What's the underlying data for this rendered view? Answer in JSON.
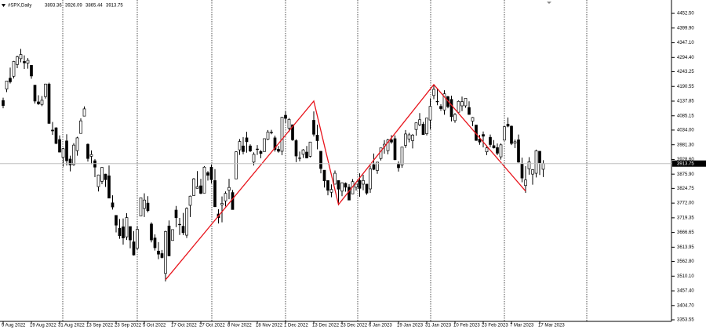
{
  "chart_data": {
    "type": "candlestick",
    "title": "#SPX,Daily",
    "up_color": "#ffffff",
    "down_color": "#000000",
    "line_color": "#000000",
    "ylim": [
      3347.9,
      4486.4
    ],
    "yticks": [
      {
        "value": 4452.5,
        "label": "4452.50"
      },
      {
        "value": 4399.9,
        "label": "4399.90"
      },
      {
        "value": 4347.1,
        "label": "4347.10"
      },
      {
        "value": 4294.4,
        "label": "4294.40"
      },
      {
        "value": 4243.25,
        "label": "4243.25"
      },
      {
        "value": 4190.55,
        "label": "4190.55"
      },
      {
        "value": 4137.85,
        "label": "4137.85"
      },
      {
        "value": 4085.15,
        "label": "4085.15"
      },
      {
        "value": 4034,
        "label": "4034.00"
      },
      {
        "value": 3981.3,
        "label": "3981.30"
      },
      {
        "value": 3928.6,
        "label": "3928.60"
      },
      {
        "value": 3875.9,
        "label": "3875.90"
      },
      {
        "value": 3824.75,
        "label": "3824.75"
      },
      {
        "value": 3772,
        "label": "3772.00"
      },
      {
        "value": 3719.35,
        "label": "3719.35"
      },
      {
        "value": 3666.65,
        "label": "3666.65"
      },
      {
        "value": 3613.95,
        "label": "3613.95"
      },
      {
        "value": 3562.8,
        "label": "3562.80"
      },
      {
        "value": 3510.1,
        "label": "3510.10"
      },
      {
        "value": 3457.4,
        "label": "3457.40"
      },
      {
        "value": 3404.7,
        "label": "3404.70"
      },
      {
        "value": 3353.55,
        "label": "3353.55"
      }
    ],
    "categories": [
      "9 Aug 2022",
      null,
      null,
      null,
      null,
      null,
      null,
      null,
      "19 Aug 2022",
      null,
      null,
      null,
      null,
      null,
      null,
      null,
      "31 Aug 2022",
      null,
      null,
      null,
      null,
      null,
      null,
      null,
      "13 Sep 2022",
      null,
      null,
      null,
      null,
      null,
      null,
      null,
      "23 Sep 2022",
      null,
      null,
      null,
      null,
      null,
      null,
      null,
      "5 Oct 2022",
      null,
      null,
      null,
      null,
      null,
      null,
      null,
      "17 Oct 2022",
      null,
      null,
      null,
      null,
      null,
      null,
      null,
      "27 Oct 2022",
      null,
      null,
      null,
      null,
      null,
      null,
      null,
      "8 Nov 2022",
      null,
      null,
      null,
      null,
      null,
      null,
      null,
      "18 Nov 2022",
      null,
      null,
      null,
      null,
      null,
      null,
      null,
      "1 Dec 2022",
      null,
      null,
      null,
      null,
      null,
      null,
      null,
      "13 Dec 2022",
      null,
      null,
      null,
      null,
      null,
      null,
      null,
      "23 Dec 2022",
      null,
      null,
      null,
      null,
      null,
      null,
      null,
      "6 Jan 2023",
      null,
      null,
      null,
      null,
      null,
      null,
      null,
      "19 Jan 2023",
      null,
      null,
      null,
      null,
      null,
      null,
      null,
      "31 Jan 2023",
      null,
      null,
      null,
      null,
      null,
      null,
      null,
      "10 Feb 2023",
      null,
      null,
      null,
      null,
      null,
      null,
      null,
      "23 Feb 2023",
      null,
      null,
      null,
      null,
      null,
      null,
      null,
      "7 Mar 2023",
      null,
      null,
      null,
      null,
      null,
      null,
      null,
      "17 Mar 2023",
      null
    ],
    "open": [
      4140,
      4181,
      4220,
      4227,
      4269,
      4290,
      4280,
      4274,
      4266,
      4195,
      4135,
      4126,
      4154,
      4199,
      4034,
      4042,
      4000,
      3936,
      3995,
      3930,
      3910,
      3960,
      4022,
      4084,
      3983,
      3940,
      3924,
      3831,
      3850,
      3876,
      3870,
      3773,
      3728,
      3682,
      3687,
      3651,
      3688,
      3633,
      3610,
      3726,
      3753,
      3772,
      3697,
      3647,
      3600,
      3591,
      3520,
      3690,
      3638,
      3747,
      3696,
      3689,
      3657,
      3764,
      3799,
      3825,
      3834,
      3808,
      3881,
      3901,
      3853,
      3733,
      3766,
      3780,
      3818,
      3810,
      3859,
      3963,
      3977,
      4006,
      3977,
      3919,
      3966,
      3957,
      3957,
      4001,
      4024,
      4006,
      3965,
      3958,
      4087,
      4041,
      4053,
      3996,
      3934,
      3947,
      3955,
      3940,
      4069,
      4016,
      3958,
      3890,
      3853,
      3811,
      3840,
      3853,
      3815,
      3843,
      3829,
      3805,
      3829,
      3853,
      3840,
      3840,
      3823,
      3910,
      3889,
      3932,
      3977,
      3960,
      3999,
      4003,
      3911,
      3909,
      3979,
      4002,
      3996,
      4036,
      4053,
      4055,
      4021,
      4070,
      4158,
      4137,
      4119,
      4106,
      4154,
      4144,
      4068,
      4098,
      4121,
      4121,
      4115,
      4066,
      4052,
      4002,
      4018,
      3956,
      4008,
      3978,
      3971,
      3938,
      3998,
      4055,
      4048,
      3987,
      3999,
      3912,
      3835,
      3895,
      3876,
      3879,
      3958,
      3893.36
    ],
    "high": [
      4150,
      4211,
      4258,
      4282,
      4301,
      4325,
      4302,
      4292,
      4266,
      4195,
      4159,
      4156,
      4200,
      4204,
      4063,
      4044,
      4015,
      3970,
      4019,
      3942,
      3987,
      4010,
      4076,
      4119,
      3986,
      3961,
      3930,
      3874,
      3901,
      3877,
      3907,
      3800,
      3728,
      3715,
      3717,
      3736,
      3688,
      3672,
      3690,
      3791,
      3807,
      3797,
      3703,
      3660,
      3632,
      3604,
      3673,
      3710,
      3678,
      3762,
      3719,
      3737,
      3757,
      3799,
      3862,
      3887,
      3859,
      3905,
      3887,
      3911,
      3894,
      3750,
      3796,
      3814,
      3859,
      3819,
      3958,
      4002,
      4009,
      4028,
      3983,
      3954,
      3980,
      3962,
      4003,
      4034,
      4035,
      4014,
      3977,
      4080,
      4101,
      4077,
      4053,
      4001,
      3957,
      3966,
      3977,
      3991,
      4101,
      4053,
      3958,
      3890,
      3854,
      3839,
      3889,
      3853,
      3846,
      3846,
      3840,
      3858,
      3840,
      3879,
      3874,
      3840,
      3906,
      3950,
      3919,
      3970,
      3998,
      4003,
      4016,
      4015,
      3922,
      3973,
      4034,
      4024,
      4020,
      4061,
      4095,
      4063,
      4077,
      4148,
      4196,
      4183,
      4127,
      4177,
      4156,
      4157,
      4095,
      4140,
      4154,
      4148,
      4137,
      4081,
      4052,
      4017,
      4029,
      3979,
      4018,
      3998,
      3986,
      3986,
      4048,
      4079,
      4050,
      4000,
      4018,
      3935,
      3905,
      3937,
      3894,
      3964,
      3958,
      3926.09
    ],
    "low": [
      4112,
      4170,
      4201,
      4219,
      4256,
      4277,
      4253,
      4254,
      4218,
      4129,
      4124,
      4120,
      4147,
      4057,
      4017,
      3984,
      3954,
      3903,
      3907,
      3886,
      3906,
      3942,
      4022,
      4083,
      3921,
      3912,
      3865,
      3814,
      3840,
      3830,
      3790,
      3749,
      3667,
      3644,
      3623,
      3640,
      3610,
      3584,
      3604,
      3726,
      3722,
      3739,
      3631,
      3602,
      3571,
      3574,
      3491,
      3582,
      3638,
      3686,
      3658,
      3657,
      3647,
      3722,
      3799,
      3824,
      3804,
      3808,
      3853,
      3843,
      3758,
      3699,
      3703,
      3760,
      3786,
      3749,
      3859,
      3945,
      3947,
      3953,
      3955,
      3907,
      3945,
      3933,
      3957,
      3998,
      4019,
      3957,
      3953,
      3944,
      4058,
      4027,
      3995,
      3919,
      3922,
      3934,
      3933,
      3936,
      4011,
      3965,
      3879,
      3828,
      3800,
      3793,
      3839,
      3764,
      3797,
      3813,
      3783,
      3805,
      3817,
      3795,
      3818,
      3802,
      3809,
      3890,
      3877,
      3925,
      3949,
      3947,
      3985,
      3926,
      3885,
      3899,
      3970,
      3990,
      3968,
      4014,
      4048,
      4017,
      4015,
      4037,
      4145,
      4123,
      4103,
      4089,
      4112,
      4065,
      4060,
      4098,
      4102,
      4114,
      4089,
      4048,
      3995,
      3981,
      3972,
      3944,
      3973,
      3968,
      3944,
      3928,
      3996,
      4044,
      3980,
      3969,
      3917,
      3847,
      3809,
      3874,
      3838,
      3864,
      3873,
      3865.44
    ],
    "close": [
      4122,
      4210,
      4207,
      4280,
      4297,
      4305,
      4275,
      4284,
      4228,
      4138,
      4128,
      4141,
      4199,
      4058,
      4031,
      3986,
      3955,
      3967,
      3924,
      3909,
      3980,
      4006,
      4067,
      4110,
      3932,
      3946,
      3901,
      3873,
      3900,
      3856,
      3790,
      3758,
      3693,
      3655,
      3647,
      3720,
      3640,
      3586,
      3678,
      3791,
      3783,
      3745,
      3640,
      3612,
      3589,
      3577,
      3670,
      3583,
      3677,
      3720,
      3695,
      3666,
      3753,
      3797,
      3859,
      3831,
      3807,
      3901,
      3872,
      3856,
      3759,
      3720,
      3771,
      3807,
      3828,
      3749,
      3956,
      3993,
      3957,
      3992,
      3959,
      3947,
      3965,
      3950,
      4003,
      4027,
      4026,
      3964,
      3958,
      4080,
      4076,
      4072,
      3999,
      3941,
      3934,
      3963,
      3934,
      3991,
      4019,
      3996,
      3896,
      3852,
      3818,
      3821,
      3879,
      3822,
      3845,
      3829,
      3783,
      3849,
      3840,
      3825,
      3853,
      3808,
      3895,
      3893,
      3919,
      3970,
      3983,
      3999,
      3991,
      3928,
      3899,
      3973,
      4020,
      4017,
      4016,
      4060,
      4071,
      4018,
      4077,
      4119,
      4180,
      4136,
      4111,
      4164,
      4118,
      4082,
      4090,
      4137,
      4136,
      4148,
      4090,
      4079,
      3997,
      3991,
      4012,
      3970,
      3982,
      3970,
      3951,
      3981,
      4046,
      4048,
      3986,
      3992,
      3919,
      3862,
      3855,
      3920,
      3892,
      3960,
      3917,
      3913.75
    ],
    "zigzag": {
      "color": "#e8141c",
      "x": [
        46,
        88,
        95,
        122,
        148
      ],
      "values": [
        3497,
        4138,
        3767,
        4197,
        3815
      ]
    }
  }
}
